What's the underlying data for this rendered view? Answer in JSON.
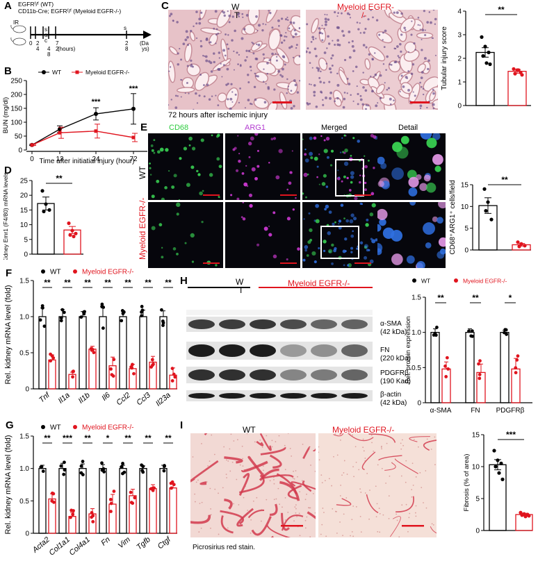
{
  "colors": {
    "wt": "#000000",
    "ko": "#e0141e",
    "he_bg": "#e9c9cd",
    "he_dark": "#b9868f",
    "sirius_bg": "#f3dad6",
    "sirius_line": "#d23a4e"
  },
  "panel_labels": [
    "A",
    "B",
    "C",
    "D",
    "E",
    "F",
    "G",
    "H",
    "I"
  ],
  "panelA": {
    "line1": "EGFRᶠ/ᶠ (WT)",
    "line2": "CD11b-Cre; EGFRᶠ/ᶠ (Myeloid EGFR-/-)",
    "ir": "IR",
    "sac_top": "s",
    "sac_a": "a",
    "sac_c": "c",
    "times": [
      "0",
      "2",
      "4",
      "7",
      "2",
      "4",
      "8",
      "2"
    ],
    "hours": "(hours)",
    "s_end": "s",
    "end_top": "2",
    "end_bot": "8",
    "days_top": "(Da",
    "days_bot": "ys)"
  },
  "panelB": {
    "legend_wt": "WT",
    "legend_ko": "Myeloid EGFR-/-",
    "ylabel": "BUN (mg/dl)",
    "xlabel": "Time after initiatial injury (hour)",
    "sig": [
      "***",
      "***"
    ]
  },
  "panelC": {
    "label_wt_top": "W",
    "label_wt_bot": "T",
    "label_ko": "Myeloid EGFR-",
    "label_ko_cont": "/-",
    "caption": "72 hours after ischemic injury",
    "ylabel": "Tubular injury score",
    "sig": "**"
  },
  "panelD": {
    "ylabel": "Kidney Emr1 (F4/80) mRNA levels",
    "sig": "**"
  },
  "panelE": {
    "ch_cd68": "CD68",
    "ch_arg1": "ARG1",
    "ch_merged": "Merged",
    "ch_detail": "Detail",
    "row_wt": "WT",
    "row_ko": "Myeloid EGFR-/-",
    "ylabel": "CD68⁺ARG1⁺ cells/field",
    "sig": "**"
  },
  "panelF": {
    "legend_wt": "WT",
    "legend_ko": "Myeloid EGFR-/-",
    "ylabel": "Rel. kidney mRNA level (fold)",
    "genes": [
      "Tnf",
      "Il1a",
      "Il1b",
      "Il6",
      "Ccl2",
      "Ccl3",
      "Il23a"
    ],
    "sig": [
      "**",
      "**",
      "**",
      "**",
      "**",
      "**",
      "**"
    ]
  },
  "panelG": {
    "legend_wt": "WT",
    "legend_ko": "Myeloid EGFR-/-",
    "ylabel": "Rel. kidney mRNA level (fold)",
    "genes": [
      "Acta2",
      "Col1a1",
      "Col4a1",
      "Fn",
      "Vim",
      "Tgfb",
      "Ctgf"
    ],
    "sig": [
      "**",
      "***",
      "**",
      "*",
      "**",
      "**",
      "**"
    ]
  },
  "panelH": {
    "group_wt_top": "W",
    "group_wt_bot": "T",
    "group_ko": "Myeloid EGFR-/-",
    "bands": [
      {
        "name": "α-SMA",
        "size": "(42 kDa)"
      },
      {
        "name": "FN",
        "size": "(220 kDa)"
      },
      {
        "name": "PDGFRβ",
        "size": "(190 Kad)"
      },
      {
        "name": "β-actin",
        "size": "(42 kDa)"
      }
    ],
    "legend_wt": "WT",
    "legend_ko": "Myeloid EGFR-/-",
    "ylabel": "Rel. protein expression",
    "sig": [
      "**",
      "**",
      "*"
    ]
  },
  "panelI": {
    "label_wt": "WT",
    "label_ko": "Myeloid EGFR-/-",
    "caption": "Picrosirius red stain.",
    "ylabel": "Fibrosis (% of area)",
    "sig": "***"
  },
  "chart_data": [
    {
      "id": "B",
      "type": "line",
      "x": [
        0,
        12,
        24,
        72
      ],
      "xticks": [
        "0",
        "12",
        "24",
        "72"
      ],
      "ylim": [
        0,
        250
      ],
      "yticks": [
        0,
        50,
        100,
        150,
        200,
        250
      ],
      "series": [
        {
          "name": "WT",
          "values": [
            18,
            75,
            130,
            148
          ],
          "err": [
            2,
            12,
            22,
            55
          ]
        },
        {
          "name": "Myeloid EGFR-/-",
          "values": [
            18,
            62,
            68,
            45
          ],
          "err": [
            2,
            20,
            25,
            15
          ]
        }
      ]
    },
    {
      "id": "C",
      "type": "bar",
      "categories": [
        "WT",
        "Myeloid EGFR-/-"
      ],
      "values": [
        2.25,
        1.45
      ],
      "err": [
        0.2,
        0.08
      ],
      "ylim": [
        0,
        4
      ],
      "yticks": [
        0,
        1,
        2,
        3,
        4
      ],
      "points": [
        [
          2.9,
          2.5,
          2.25,
          2.1,
          1.8,
          1.75
        ],
        [
          1.55,
          1.5,
          1.4,
          1.35,
          1.5,
          1.3
        ]
      ]
    },
    {
      "id": "D",
      "type": "bar",
      "categories": [
        "WT",
        "Myeloid EGFR-/-"
      ],
      "values": [
        17.2,
        8.2
      ],
      "err": [
        2.2,
        1.2
      ],
      "ylim": [
        0,
        25
      ],
      "yticks": [
        0,
        5,
        10,
        15,
        20,
        25
      ],
      "points": [
        [
          21.5,
          17,
          15,
          14.5
        ],
        [
          10.5,
          8,
          7,
          6.5,
          6
        ]
      ]
    },
    {
      "id": "E",
      "type": "bar",
      "categories": [
        "WT",
        "Myeloid EGFR-/-"
      ],
      "values": [
        10.2,
        1.2
      ],
      "err": [
        1.8,
        0.3
      ],
      "ylim": [
        0,
        15
      ],
      "yticks": [
        0,
        5,
        10,
        15
      ],
      "points": [
        [
          14,
          11,
          7,
          9
        ],
        [
          1.8,
          1.4,
          1.0,
          0.8
        ]
      ]
    },
    {
      "id": "F",
      "type": "bar",
      "categories": [
        "Tnf",
        "Il1a",
        "Il1b",
        "Il6",
        "Ccl2",
        "Ccl3",
        "Il23a"
      ],
      "ylim": [
        0,
        1.5
      ],
      "yticks": [
        0,
        0.5,
        1.0,
        1.5
      ],
      "series": [
        {
          "name": "WT",
          "values": [
            1.0,
            1.0,
            1.0,
            1.0,
            1.0,
            1.0,
            1.0
          ],
          "err": [
            0.12,
            0.1,
            0.07,
            0.12,
            0.08,
            0.09,
            0.08
          ]
        },
        {
          "name": "Myeloid EGFR-/-",
          "values": [
            0.4,
            0.2,
            0.55,
            0.32,
            0.28,
            0.37,
            0.19
          ],
          "err": [
            0.07,
            0.03,
            0.04,
            0.12,
            0.06,
            0.08,
            0.1
          ]
        }
      ]
    },
    {
      "id": "G",
      "type": "bar",
      "categories": [
        "Acta2",
        "Col1a1",
        "Col4a1",
        "Fn",
        "Vim",
        "Tgfb",
        "Ctgf"
      ],
      "ylim": [
        0,
        1.5
      ],
      "yticks": [
        0,
        0.5,
        1.0,
        1.5
      ],
      "series": [
        {
          "name": "WT",
          "values": [
            1.0,
            1.0,
            1.0,
            1.0,
            1.0,
            1.0,
            1.0
          ],
          "err": [
            0.05,
            0.08,
            0.07,
            0.06,
            0.05,
            0.04,
            0.05
          ]
        },
        {
          "name": "Myeloid EGFR-/-",
          "values": [
            0.53,
            0.26,
            0.3,
            0.45,
            0.58,
            0.69,
            0.7
          ],
          "err": [
            0.08,
            0.06,
            0.08,
            0.15,
            0.1,
            0.06,
            0.06
          ]
        }
      ]
    },
    {
      "id": "H",
      "type": "bar",
      "categories": [
        "α-SMA",
        "FN",
        "PDGFRβ"
      ],
      "ylim": [
        0,
        1.5
      ],
      "yticks": [
        0,
        0.5,
        1.0,
        1.5
      ],
      "series": [
        {
          "name": "WT",
          "values": [
            1.0,
            1.0,
            1.0
          ],
          "err": [
            0.05,
            0.05,
            0.03
          ]
        },
        {
          "name": "Myeloid EGFR-/-",
          "values": [
            0.48,
            0.43,
            0.48
          ],
          "err": [
            0.1,
            0.12,
            0.15
          ]
        }
      ]
    },
    {
      "id": "I",
      "type": "bar",
      "categories": [
        "WT",
        "Myeloid EGFR-/-"
      ],
      "values": [
        10.3,
        2.5
      ],
      "err": [
        0.8,
        0.2
      ],
      "ylim": [
        0,
        15
      ],
      "yticks": [
        0,
        5,
        10,
        15
      ],
      "points": [
        [
          12.5,
          11,
          10.5,
          10,
          9,
          8
        ],
        [
          2.8,
          2.6,
          2.5,
          2.4,
          2.2,
          2.3
        ]
      ]
    }
  ]
}
